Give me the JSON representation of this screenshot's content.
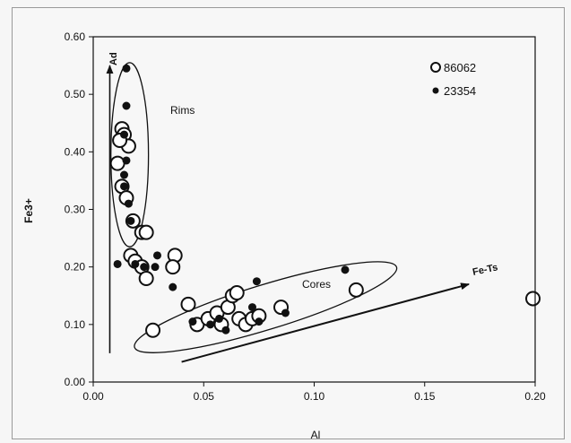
{
  "chart_data": {
    "type": "scatter",
    "title": "",
    "xlabel": "Al",
    "ylabel": "Fe3+",
    "xlim": [
      0,
      0.2
    ],
    "ylim": [
      0,
      0.6
    ],
    "x_ticks": [
      "0.00",
      "0.05",
      "0.10",
      "0.15",
      "0.20"
    ],
    "y_ticks": [
      "0.00",
      "0.10",
      "0.20",
      "0.30",
      "0.40",
      "0.50",
      "0.60"
    ],
    "grid": false,
    "legend_position": "top-right",
    "series": [
      {
        "name": "86062",
        "marker": "open-circle",
        "points": [
          [
            0.013,
            0.44
          ],
          [
            0.014,
            0.43
          ],
          [
            0.016,
            0.41
          ],
          [
            0.012,
            0.42
          ],
          [
            0.011,
            0.38
          ],
          [
            0.013,
            0.34
          ],
          [
            0.015,
            0.32
          ],
          [
            0.018,
            0.28
          ],
          [
            0.022,
            0.26
          ],
          [
            0.024,
            0.26
          ],
          [
            0.017,
            0.22
          ],
          [
            0.019,
            0.21
          ],
          [
            0.022,
            0.2
          ],
          [
            0.024,
            0.18
          ],
          [
            0.037,
            0.22
          ],
          [
            0.036,
            0.2
          ],
          [
            0.043,
            0.135
          ],
          [
            0.027,
            0.09
          ],
          [
            0.047,
            0.1
          ],
          [
            0.052,
            0.11
          ],
          [
            0.056,
            0.12
          ],
          [
            0.058,
            0.1
          ],
          [
            0.061,
            0.13
          ],
          [
            0.063,
            0.15
          ],
          [
            0.065,
            0.155
          ],
          [
            0.066,
            0.11
          ],
          [
            0.069,
            0.1
          ],
          [
            0.072,
            0.11
          ],
          [
            0.075,
            0.115
          ],
          [
            0.085,
            0.13
          ],
          [
            0.119,
            0.16
          ],
          [
            0.199,
            0.145
          ]
        ]
      },
      {
        "name": "23354",
        "marker": "filled-circle",
        "points": [
          [
            0.015,
            0.545
          ],
          [
            0.015,
            0.48
          ],
          [
            0.014,
            0.43
          ],
          [
            0.015,
            0.385
          ],
          [
            0.014,
            0.36
          ],
          [
            0.014,
            0.34
          ],
          [
            0.016,
            0.31
          ],
          [
            0.017,
            0.28
          ],
          [
            0.011,
            0.205
          ],
          [
            0.019,
            0.205
          ],
          [
            0.023,
            0.2
          ],
          [
            0.029,
            0.22
          ],
          [
            0.028,
            0.2
          ],
          [
            0.036,
            0.165
          ],
          [
            0.045,
            0.105
          ],
          [
            0.053,
            0.1
          ],
          [
            0.057,
            0.11
          ],
          [
            0.06,
            0.09
          ],
          [
            0.072,
            0.13
          ],
          [
            0.075,
            0.105
          ],
          [
            0.074,
            0.175
          ],
          [
            0.087,
            0.12
          ],
          [
            0.114,
            0.195
          ]
        ]
      }
    ],
    "annotations": [
      {
        "id": "rims",
        "text": "Rims"
      },
      {
        "id": "cores",
        "text": "Cores"
      },
      {
        "id": "ad",
        "text": "Ad"
      },
      {
        "id": "fe-ts",
        "text": "Fe-Ts"
      }
    ],
    "overlays": {
      "rims_ellipse": {
        "center": [
          0.0165,
          0.395
        ],
        "half_width": 0.0085,
        "half_height": 0.16
      },
      "cores_ellipse": {
        "center": [
          0.078,
          0.13
        ],
        "half_width": 0.062,
        "half_height": 0.063,
        "rotation_deg": -17
      },
      "ad_arrow": {
        "from": [
          0.0075,
          0.05
        ],
        "to": [
          0.0075,
          0.55
        ]
      },
      "fe_ts_arrow": {
        "from": [
          0.04,
          0.035
        ],
        "to": [
          0.17,
          0.17
        ]
      }
    }
  }
}
